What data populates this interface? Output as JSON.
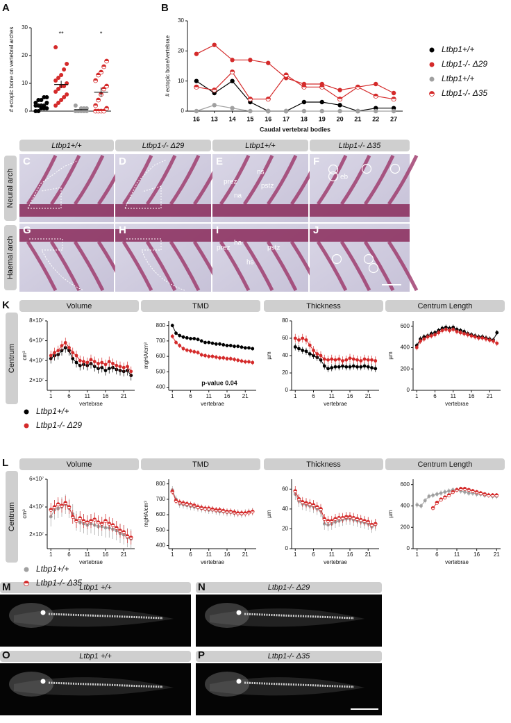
{
  "panels": {
    "letters": [
      "A",
      "B",
      "C",
      "D",
      "E",
      "F",
      "G",
      "H",
      "I",
      "J",
      "K",
      "L",
      "M",
      "N",
      "O",
      "P"
    ]
  },
  "photos": {
    "columns": [
      "Ltbp1+/+",
      "Ltbp1-/- Δ29",
      "Ltbp1+/+",
      "Ltbp1-/- Δ35"
    ],
    "rows": [
      "Neural arch",
      "Haemal arch"
    ],
    "annotations": [
      "prez",
      "ns",
      "na",
      "pstz",
      "eb",
      "prez",
      "ha",
      "pstz",
      "hs"
    ]
  },
  "k_row": {
    "label": "Centrum"
  },
  "l_row": {
    "label": "Centrum"
  },
  "microct": {
    "headers": [
      "Ltbp1 +/+",
      "Ltbp1-/- Δ29",
      "Ltbp1 +/+",
      "Ltbp1-/- Δ35"
    ]
  },
  "chart_data": [
    {
      "type": "dot",
      "y_label": "# ectopic bone on vertebral arches",
      "ylim": [
        0,
        30
      ],
      "yticks": [
        0,
        10,
        20,
        30
      ],
      "series": [
        {
          "name": "Ltbp1+/+",
          "color": "#000000",
          "values": [
            0,
            0,
            1,
            1,
            1,
            2,
            2,
            2,
            2,
            3,
            3,
            4,
            4,
            5,
            5
          ],
          "mean": 2.3,
          "sem": 0.5
        },
        {
          "name": "Ltbp1-/- Δ29",
          "color": "#d42a2a",
          "values": [
            2,
            3,
            4,
            5,
            6,
            7,
            8,
            9,
            9,
            10,
            11,
            12,
            13,
            15,
            17,
            23
          ],
          "mean": 9.6,
          "sem": 1.3,
          "significance": "**"
        },
        {
          "name": "Ltbp1+/+",
          "color": "#a0a0a0",
          "values": [
            0,
            0,
            0,
            0,
            0,
            0,
            0,
            1,
            1,
            1,
            2
          ],
          "mean": 0.5,
          "sem": 0.2
        },
        {
          "name": "Ltbp1-/- Δ35",
          "color": "#d42a2a",
          "marker": "half",
          "values": [
            0,
            0,
            0,
            0,
            1,
            2,
            4,
            6,
            8,
            9,
            11,
            13,
            14,
            16,
            18
          ],
          "mean": 6.8,
          "sem": 1.7,
          "significance": "*"
        }
      ]
    },
    {
      "type": "line",
      "y_label": "# ectopic bone/vertebrae",
      "x_label": "Caudal vertebral bodies",
      "categories": [
        "16",
        "13",
        "14",
        "15",
        "16",
        "17",
        "18",
        "19",
        "20",
        "21",
        "22",
        "27"
      ],
      "ylim": [
        0,
        30
      ],
      "yticks": [
        0,
        10,
        20,
        30
      ],
      "series": [
        {
          "name": "Ltbp1+/+",
          "color": "#000000",
          "values": [
            10,
            6,
            10,
            3,
            0,
            0,
            3,
            3,
            2,
            0,
            1,
            1
          ]
        },
        {
          "name": "Ltbp1-/- Δ29",
          "color": "#d42a2a",
          "values": [
            19,
            22,
            17,
            17,
            16,
            11,
            9,
            9,
            7,
            8,
            9,
            6
          ]
        },
        {
          "name": "Ltbp1+/+",
          "color": "#a0a0a0",
          "values": [
            0,
            2,
            1,
            0,
            0,
            0,
            0,
            0,
            0,
            0,
            0,
            0
          ]
        },
        {
          "name": "Ltbp1-/- Δ35",
          "color": "#d42a2a",
          "marker": "half",
          "values": [
            8,
            7,
            13,
            4,
            4,
            12,
            8,
            8,
            4,
            8,
            5,
            4
          ]
        }
      ]
    },
    {
      "type": "line",
      "title": "Volume",
      "x_label": "vertebrae",
      "y_label": "cm³",
      "x": [
        1,
        2,
        3,
        4,
        5,
        6,
        7,
        8,
        9,
        10,
        11,
        12,
        13,
        14,
        15,
        16,
        17,
        18,
        19,
        20,
        21,
        22,
        23
      ],
      "xlim": [
        0,
        24
      ],
      "xticks": [
        1,
        6,
        11,
        16,
        21
      ],
      "ylim": [
        10000000.0,
        80000000.0
      ],
      "yticks": [
        {
          "value": 20000000.0,
          "label": "2×10⁷"
        },
        {
          "value": 40000000.0,
          "label": "4×10⁷"
        },
        {
          "value": 60000000.0,
          "label": "6×10⁷"
        },
        {
          "value": 80000000.0,
          "label": "8×10⁷"
        }
      ],
      "series": [
        {
          "name": "Ltbp1+/+",
          "color": "#000000",
          "error": 5000000.0,
          "values": [
            42000000.0,
            45000000.0,
            46000000.0,
            50000000.0,
            53000000.0,
            50000000.0,
            42000000.0,
            38000000.0,
            35000000.0,
            36000000.0,
            35000000.0,
            37000000.0,
            34000000.0,
            32000000.0,
            33000000.0,
            30000000.0,
            32000000.0,
            33000000.0,
            31000000.0,
            30000000.0,
            29000000.0,
            30000000.0,
            25000000.0
          ]
        },
        {
          "name": "Ltbp1-/- Δ29",
          "color": "#d42a2a",
          "error": 5000000.0,
          "values": [
            45000000.0,
            48000000.0,
            50000000.0,
            55000000.0,
            58000000.0,
            53000000.0,
            48000000.0,
            45000000.0,
            40000000.0,
            39000000.0,
            38000000.0,
            41000000.0,
            39000000.0,
            37000000.0,
            38000000.0,
            36000000.0,
            39000000.0,
            37000000.0,
            35000000.0,
            34000000.0,
            33000000.0,
            34000000.0,
            29000000.0
          ]
        }
      ]
    },
    {
      "type": "line",
      "title": "TMD",
      "x_label": "vertebrae",
      "y_label": "mgHA/cm³",
      "annotation": "p-value 0.04",
      "x": [
        1,
        2,
        3,
        4,
        5,
        6,
        7,
        8,
        9,
        10,
        11,
        12,
        13,
        14,
        15,
        16,
        17,
        18,
        19,
        20,
        21,
        22,
        23
      ],
      "xlim": [
        0,
        24
      ],
      "xticks": [
        1,
        6,
        11,
        16,
        21
      ],
      "ylim": [
        380,
        830
      ],
      "yticks": [
        400,
        500,
        600,
        700,
        800
      ],
      "series": [
        {
          "name": "Ltbp1+/+",
          "color": "#000000",
          "error": 12,
          "values": [
            800,
            750,
            735,
            725,
            720,
            715,
            715,
            710,
            700,
            690,
            690,
            685,
            680,
            680,
            675,
            670,
            670,
            665,
            665,
            660,
            655,
            655,
            650
          ]
        },
        {
          "name": "Ltbp1-/- Δ29",
          "color": "#d42a2a",
          "error": 15,
          "values": [
            730,
            690,
            670,
            650,
            640,
            635,
            630,
            625,
            610,
            605,
            600,
            600,
            595,
            590,
            590,
            585,
            585,
            580,
            575,
            570,
            565,
            565,
            560
          ]
        }
      ]
    },
    {
      "type": "line",
      "title": "Thickness",
      "x_label": "vertebrae",
      "y_label": "µm",
      "x": [
        1,
        2,
        3,
        4,
        5,
        6,
        7,
        8,
        9,
        10,
        11,
        12,
        13,
        14,
        15,
        16,
        17,
        18,
        19,
        20,
        21,
        22,
        23
      ],
      "xlim": [
        0,
        24
      ],
      "xticks": [
        1,
        6,
        11,
        16,
        21
      ],
      "ylim": [
        0,
        80
      ],
      "yticks": [
        0,
        20,
        40,
        60,
        80
      ],
      "series": [
        {
          "name": "Ltbp1+/+",
          "color": "#000000",
          "error": 4,
          "values": [
            50,
            48,
            46,
            45,
            42,
            40,
            38,
            35,
            28,
            25,
            26,
            27,
            27,
            28,
            27,
            27,
            28,
            27,
            27,
            28,
            27,
            26,
            25
          ]
        },
        {
          "name": "Ltbp1-/- Δ29",
          "color": "#d42a2a",
          "error": 5,
          "values": [
            60,
            58,
            60,
            58,
            52,
            46,
            42,
            40,
            36,
            35,
            36,
            35,
            36,
            34,
            35,
            37,
            36,
            35,
            34,
            36,
            35,
            35,
            34
          ]
        }
      ]
    },
    {
      "type": "line",
      "title": "Centrum Length",
      "x_label": "vertebrae",
      "y_label": "µm",
      "x": [
        1,
        2,
        3,
        4,
        5,
        6,
        7,
        8,
        9,
        10,
        11,
        12,
        13,
        14,
        15,
        16,
        17,
        18,
        19,
        20,
        21,
        22,
        23
      ],
      "xlim": [
        0,
        24
      ],
      "xticks": [
        1,
        6,
        11,
        16,
        21
      ],
      "ylim": [
        0,
        650
      ],
      "yticks": [
        0,
        200,
        400,
        600
      ],
      "series": [
        {
          "name": "Ltbp1+/+",
          "color": "#000000",
          "error": 25,
          "values": [
            420,
            480,
            500,
            510,
            530,
            540,
            560,
            580,
            590,
            580,
            590,
            570,
            560,
            550,
            530,
            520,
            510,
            500,
            500,
            490,
            480,
            470,
            540
          ]
        },
        {
          "name": "Ltbp1-/- Δ29",
          "color": "#d42a2a",
          "error": 25,
          "values": [
            400,
            460,
            480,
            500,
            510,
            520,
            540,
            560,
            570,
            560,
            570,
            550,
            540,
            530,
            520,
            510,
            500,
            490,
            490,
            480,
            470,
            460,
            440
          ]
        }
      ]
    },
    {
      "type": "line",
      "title": "Volume",
      "x_label": "vertebrae",
      "y_label": "cm³",
      "x": [
        1,
        2,
        3,
        4,
        5,
        6,
        7,
        8,
        9,
        10,
        11,
        12,
        13,
        14,
        15,
        16,
        17,
        18,
        19,
        20,
        21,
        22,
        23
      ],
      "xlim": [
        0,
        24
      ],
      "xticks": [
        1,
        6,
        11,
        16,
        21
      ],
      "ylim": [
        10000000.0,
        60000000.0
      ],
      "yticks": [
        {
          "value": 20000000.0,
          "label": "2×10⁷"
        },
        {
          "value": 40000000.0,
          "label": "4×10⁷"
        },
        {
          "value": 60000000.0,
          "label": "6×10⁷"
        }
      ],
      "series": [
        {
          "name": "Ltbp1+/+",
          "color": "#a0a0a0",
          "error": 7000000.0,
          "values": [
            33000000.0,
            38000000.0,
            39000000.0,
            40000000.0,
            42000000.0,
            39000000.0,
            35000000.0,
            30000000.0,
            29000000.0,
            28000000.0,
            27000000.0,
            28000000.0,
            27000000.0,
            26000000.0,
            26000000.0,
            25000000.0,
            25000000.0,
            24000000.0,
            23000000.0,
            21000000.0,
            20000000.0,
            18000000.0,
            17000000.0
          ]
        },
        {
          "name": "Ltbp1-/- Δ35",
          "color": "#d42a2a",
          "marker": "half",
          "error": 5000000.0,
          "values": [
            38000000.0,
            40000000.0,
            42000000.0,
            41000000.0,
            43000000.0,
            40000000.0,
            33000000.0,
            30000000.0,
            32000000.0,
            30000000.0,
            29000000.0,
            30000000.0,
            31000000.0,
            29000000.0,
            28000000.0,
            30000000.0,
            28000000.0,
            27000000.0,
            25000000.0,
            23000000.0,
            22000000.0,
            19000000.0,
            18000000.0
          ]
        }
      ]
    },
    {
      "type": "line",
      "title": "TMD",
      "x_label": "vertebrae",
      "y_label": "mgHA/cm³",
      "x": [
        1,
        2,
        3,
        4,
        5,
        6,
        7,
        8,
        9,
        10,
        11,
        12,
        13,
        14,
        15,
        16,
        17,
        18,
        19,
        20,
        21,
        22,
        23
      ],
      "xlim": [
        0,
        24
      ],
      "xticks": [
        1,
        6,
        11,
        16,
        21
      ],
      "ylim": [
        380,
        830
      ],
      "yticks": [
        400,
        500,
        600,
        700,
        800
      ],
      "series": [
        {
          "name": "Ltbp1+/+",
          "color": "#a0a0a0",
          "error": 25,
          "values": [
            760,
            700,
            670,
            665,
            660,
            655,
            650,
            645,
            640,
            635,
            630,
            630,
            625,
            620,
            620,
            615,
            615,
            610,
            610,
            605,
            610,
            615,
            620
          ]
        },
        {
          "name": "Ltbp1-/- Δ35",
          "color": "#d42a2a",
          "marker": "half",
          "error": 20,
          "values": [
            750,
            690,
            680,
            675,
            670,
            665,
            660,
            650,
            645,
            640,
            640,
            635,
            630,
            630,
            625,
            620,
            620,
            615,
            610,
            610,
            610,
            615,
            620
          ]
        }
      ]
    },
    {
      "type": "line",
      "title": "Thickness",
      "x_label": "vertebrae",
      "y_label": "µm",
      "x": [
        1,
        2,
        3,
        4,
        5,
        6,
        7,
        8,
        9,
        10,
        11,
        12,
        13,
        14,
        15,
        16,
        17,
        18,
        19,
        20,
        21,
        22,
        23
      ],
      "xlim": [
        0,
        24
      ],
      "xticks": [
        1,
        6,
        11,
        16,
        21
      ],
      "ylim": [
        0,
        70
      ],
      "yticks": [
        0,
        20,
        40,
        60
      ],
      "series": [
        {
          "name": "Ltbp1+/+",
          "color": "#a0a0a0",
          "error": 6,
          "values": [
            55,
            48,
            45,
            44,
            43,
            42,
            40,
            38,
            25,
            24,
            25,
            27,
            28,
            29,
            30,
            30,
            29,
            28,
            27,
            26,
            25,
            22,
            24
          ]
        },
        {
          "name": "Ltbp1-/- Δ35",
          "color": "#d42a2a",
          "marker": "half",
          "error": 5,
          "values": [
            58,
            50,
            47,
            46,
            45,
            44,
            42,
            40,
            30,
            28,
            28,
            30,
            31,
            31,
            32,
            32,
            31,
            30,
            29,
            28,
            27,
            24,
            25
          ]
        }
      ]
    },
    {
      "type": "line",
      "title": "Centrum Length",
      "x_label": "vertebrae",
      "y_label": "µm",
      "x": [
        1,
        2,
        3,
        4,
        5,
        6,
        7,
        8,
        9,
        10,
        11,
        12,
        13,
        14,
        15,
        16,
        17,
        18,
        19,
        20,
        21
      ],
      "xlim": [
        0,
        22
      ],
      "xticks": [
        1,
        6,
        11,
        16,
        21
      ],
      "ylim": [
        0,
        650
      ],
      "yticks": [
        0,
        200,
        400,
        600
      ],
      "series": [
        {
          "name": "Ltbp1+/+",
          "color": "#a0a0a0",
          "error": 25,
          "values": [
            410,
            400,
            450,
            490,
            500,
            510,
            520,
            530,
            540,
            550,
            550,
            540,
            530,
            520,
            520,
            510,
            510,
            500,
            500,
            490,
            490
          ]
        },
        {
          "name": "Ltbp1-/- Δ35",
          "color": "#d42a2a",
          "marker": "half",
          "error": 20,
          "values": [
            null,
            null,
            null,
            null,
            380,
            430,
            460,
            480,
            500,
            530,
            550,
            560,
            560,
            550,
            540,
            530,
            520,
            510,
            500,
            500,
            500
          ]
        }
      ]
    }
  ]
}
